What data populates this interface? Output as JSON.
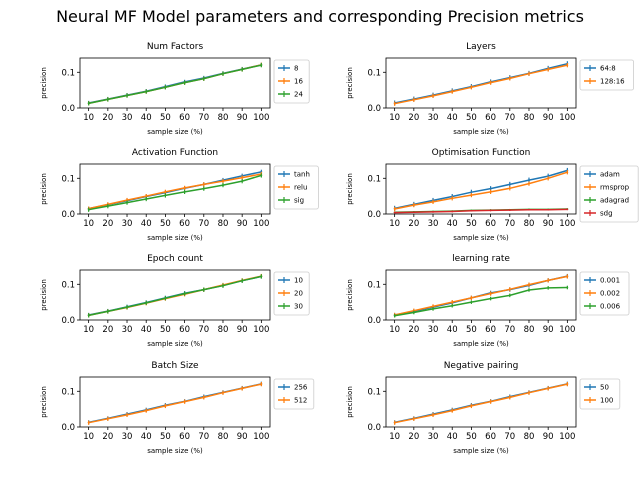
{
  "figure": {
    "title": "Neural MF Model parameters and corresponding Precision metrics"
  },
  "colors": {
    "blue": "#1f77b4",
    "orange": "#ff7f0e",
    "green": "#2ca02c",
    "red": "#d62728"
  },
  "chart_data": [
    {
      "type": "line",
      "title": "Num Factors",
      "xlabel": "sample size (%)",
      "ylabel": "precision",
      "x": [
        10,
        20,
        30,
        40,
        50,
        60,
        70,
        80,
        90,
        100
      ],
      "ylim": [
        0,
        0.14
      ],
      "yticks": [
        "0.0",
        "0.1"
      ],
      "legend_position": "right",
      "series": [
        {
          "name": "8",
          "color": "blue",
          "values": [
            0.014,
            0.025,
            0.036,
            0.047,
            0.06,
            0.073,
            0.084,
            0.097,
            0.109,
            0.121
          ],
          "err": 0.006
        },
        {
          "name": "16",
          "color": "orange",
          "values": [
            0.013,
            0.024,
            0.035,
            0.046,
            0.058,
            0.071,
            0.082,
            0.096,
            0.108,
            0.121
          ],
          "err": 0.006
        },
        {
          "name": "24",
          "color": "green",
          "values": [
            0.013,
            0.024,
            0.035,
            0.046,
            0.058,
            0.071,
            0.082,
            0.096,
            0.108,
            0.12
          ],
          "err": 0.006
        }
      ]
    },
    {
      "type": "line",
      "title": "Layers",
      "xlabel": "sample size (%)",
      "ylabel": "precision",
      "x": [
        10,
        20,
        30,
        40,
        50,
        60,
        70,
        80,
        90,
        100
      ],
      "ylim": [
        0,
        0.14
      ],
      "yticks": [
        "0.0",
        "0.1"
      ],
      "legend_position": "right",
      "series": [
        {
          "name": "64:8",
          "color": "blue",
          "values": [
            0.014,
            0.025,
            0.036,
            0.048,
            0.06,
            0.073,
            0.085,
            0.097,
            0.111,
            0.124
          ],
          "err": 0.007
        },
        {
          "name": "128:16",
          "color": "orange",
          "values": [
            0.012,
            0.023,
            0.034,
            0.046,
            0.058,
            0.071,
            0.083,
            0.096,
            0.108,
            0.12
          ],
          "err": 0.006
        }
      ]
    },
    {
      "type": "line",
      "title": "Activation Function",
      "xlabel": "sample size (%)",
      "ylabel": "precision",
      "x": [
        10,
        20,
        30,
        40,
        50,
        60,
        70,
        80,
        90,
        100
      ],
      "ylim": [
        0,
        0.14
      ],
      "yticks": [
        "0.0",
        "0.1"
      ],
      "legend_position": "right",
      "series": [
        {
          "name": "tanh",
          "color": "blue",
          "values": [
            0.015,
            0.026,
            0.037,
            0.049,
            0.06,
            0.072,
            0.083,
            0.095,
            0.107,
            0.118
          ],
          "err": 0.006
        },
        {
          "name": "relu",
          "color": "orange",
          "values": [
            0.015,
            0.027,
            0.039,
            0.05,
            0.062,
            0.073,
            0.083,
            0.092,
            0.102,
            0.112
          ],
          "err": 0.006
        },
        {
          "name": "sig",
          "color": "green",
          "values": [
            0.012,
            0.022,
            0.032,
            0.042,
            0.052,
            0.062,
            0.071,
            0.081,
            0.092,
            0.108
          ],
          "err": 0.006
        }
      ]
    },
    {
      "type": "line",
      "title": "Optimisation Function",
      "xlabel": "sample size (%)",
      "ylabel": "precision",
      "x": [
        10,
        20,
        30,
        40,
        50,
        60,
        70,
        80,
        90,
        100
      ],
      "ylim": [
        0,
        0.14
      ],
      "yticks": [
        "0.0",
        "0.1"
      ],
      "legend_position": "right",
      "series": [
        {
          "name": "adam",
          "color": "blue",
          "values": [
            0.016,
            0.027,
            0.038,
            0.049,
            0.061,
            0.071,
            0.083,
            0.095,
            0.106,
            0.122
          ],
          "err": 0.007
        },
        {
          "name": "rmsprop",
          "color": "orange",
          "values": [
            0.014,
            0.025,
            0.034,
            0.044,
            0.053,
            0.062,
            0.072,
            0.085,
            0.1,
            0.117
          ],
          "err": 0.006
        },
        {
          "name": "adagrad",
          "color": "green",
          "values": [
            0.005,
            0.006,
            0.007,
            0.008,
            0.01,
            0.011,
            0.012,
            0.013,
            0.013,
            0.014
          ],
          "err": 0.002
        },
        {
          "name": "sdg",
          "color": "red",
          "values": [
            0.004,
            0.005,
            0.006,
            0.007,
            0.009,
            0.01,
            0.011,
            0.012,
            0.012,
            0.013
          ],
          "err": 0.002
        }
      ]
    },
    {
      "type": "line",
      "title": "Epoch count",
      "xlabel": "sample size (%)",
      "ylabel": "precision",
      "x": [
        10,
        20,
        30,
        40,
        50,
        60,
        70,
        80,
        90,
        100
      ],
      "ylim": [
        0,
        0.14
      ],
      "yticks": [
        "0.0",
        "0.1"
      ],
      "legend_position": "right",
      "series": [
        {
          "name": "10",
          "color": "blue",
          "values": [
            0.014,
            0.025,
            0.037,
            0.049,
            0.062,
            0.075,
            0.085,
            0.097,
            0.11,
            0.122
          ],
          "err": 0.006
        },
        {
          "name": "20",
          "color": "orange",
          "values": [
            0.013,
            0.024,
            0.035,
            0.047,
            0.06,
            0.072,
            0.085,
            0.098,
            0.111,
            0.123
          ],
          "err": 0.006
        },
        {
          "name": "30",
          "color": "green",
          "values": [
            0.013,
            0.024,
            0.036,
            0.048,
            0.061,
            0.074,
            0.085,
            0.096,
            0.11,
            0.122
          ],
          "err": 0.006
        }
      ]
    },
    {
      "type": "line",
      "title": "learning rate",
      "xlabel": "sample size (%)",
      "ylabel": "precision",
      "x": [
        10,
        20,
        30,
        40,
        50,
        60,
        70,
        80,
        90,
        100
      ],
      "ylim": [
        0,
        0.14
      ],
      "yticks": [
        "0.0",
        "0.1"
      ],
      "legend_position": "right",
      "series": [
        {
          "name": "0.001",
          "color": "blue",
          "values": [
            0.014,
            0.024,
            0.036,
            0.048,
            0.062,
            0.076,
            0.085,
            0.097,
            0.111,
            0.123
          ],
          "err": 0.006
        },
        {
          "name": "0.002",
          "color": "orange",
          "values": [
            0.014,
            0.026,
            0.038,
            0.05,
            0.062,
            0.074,
            0.086,
            0.099,
            0.111,
            0.122
          ],
          "err": 0.006
        },
        {
          "name": "0.006",
          "color": "green",
          "values": [
            0.012,
            0.021,
            0.031,
            0.04,
            0.05,
            0.06,
            0.069,
            0.084,
            0.09,
            0.091
          ],
          "err": 0.005
        }
      ]
    },
    {
      "type": "line",
      "title": "Batch Size",
      "xlabel": "sample size (%)",
      "ylabel": "precision",
      "x": [
        10,
        20,
        30,
        40,
        50,
        60,
        70,
        80,
        90,
        100
      ],
      "ylim": [
        0,
        0.14
      ],
      "yticks": [
        "0.0",
        "0.1"
      ],
      "legend_position": "right",
      "series": [
        {
          "name": "256",
          "color": "blue",
          "values": [
            0.013,
            0.024,
            0.036,
            0.048,
            0.061,
            0.072,
            0.085,
            0.097,
            0.109,
            0.121
          ],
          "err": 0.006
        },
        {
          "name": "512",
          "color": "orange",
          "values": [
            0.012,
            0.023,
            0.034,
            0.046,
            0.059,
            0.071,
            0.083,
            0.096,
            0.108,
            0.12
          ],
          "err": 0.006
        }
      ]
    },
    {
      "type": "line",
      "title": "Negative pairing",
      "xlabel": "sample size (%)",
      "ylabel": "precision",
      "x": [
        10,
        20,
        30,
        40,
        50,
        60,
        70,
        80,
        90,
        100
      ],
      "ylim": [
        0,
        0.14
      ],
      "yticks": [
        "0.0",
        "0.1"
      ],
      "legend_position": "right",
      "series": [
        {
          "name": "50",
          "color": "blue",
          "values": [
            0.013,
            0.024,
            0.036,
            0.048,
            0.061,
            0.072,
            0.085,
            0.097,
            0.109,
            0.121
          ],
          "err": 0.006
        },
        {
          "name": "100",
          "color": "orange",
          "values": [
            0.012,
            0.023,
            0.034,
            0.046,
            0.059,
            0.071,
            0.083,
            0.096,
            0.108,
            0.12
          ],
          "err": 0.006
        }
      ]
    }
  ]
}
